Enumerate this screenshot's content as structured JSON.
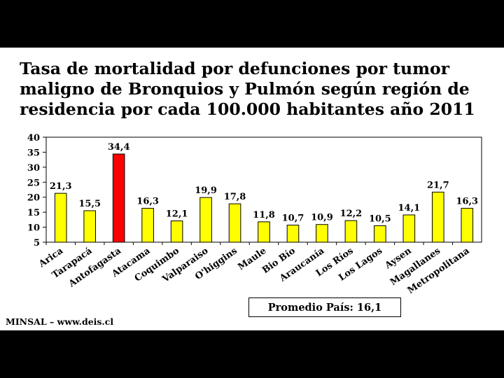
{
  "slide": {
    "title": "Tasa de mortalidad por defunciones por tumor\nmaligno de Bronquios y Pulmón según región de\nresidencia por cada 100.000 habitantes año 2011",
    "average_label": "Promedio País: 16,1",
    "source": "MINSAL – www.deis.cl"
  },
  "chart_data": {
    "type": "bar",
    "categories": [
      "Arica",
      "Tarapacá",
      "Antofagasta",
      "Atacama",
      "Coquimbo",
      "Valparaiso",
      "O'higgins",
      "Maule",
      "Bio Bío",
      "Araucanía",
      "Los Ríos",
      "Los Lagos",
      "Aysen",
      "Magallanes",
      "Metropolitana"
    ],
    "values": [
      21.3,
      15.5,
      34.4,
      16.3,
      12.1,
      19.9,
      17.8,
      11.8,
      10.7,
      10.9,
      12.2,
      10.5,
      14.1,
      21.7,
      16.3
    ],
    "value_labels": [
      "21,3",
      "15,5",
      "34,4",
      "16,3",
      "12,1",
      "19,9",
      "17,8",
      "11,8",
      "10,7",
      "10,9",
      "12,2",
      "10,5",
      "14,1",
      "21,7",
      "16,3"
    ],
    "yticks": [
      "5",
      "10",
      "15",
      "20",
      "25",
      "30",
      "35",
      "40"
    ],
    "ylim": [
      5,
      40
    ],
    "grid": false,
    "bar_color": "#ffff00",
    "highlight_color": "#ff0000",
    "highlight_category": "Antofagasta",
    "bar_stroke": "#000000"
  }
}
